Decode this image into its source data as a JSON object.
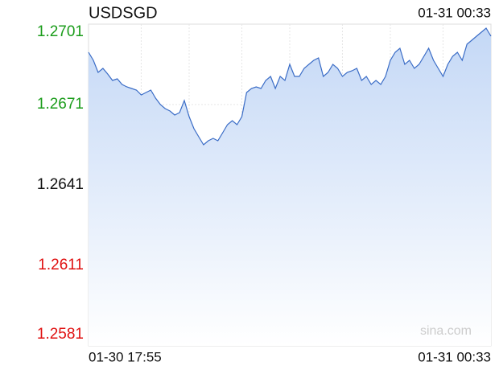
{
  "chart_data": {
    "type": "line",
    "title": "USDSGD",
    "time": "01-31 00:33",
    "watermark": "sina.com",
    "categories": [
      "01-30 17:55",
      null,
      null,
      null,
      null,
      null,
      null,
      null,
      null,
      null,
      null,
      null,
      null,
      null,
      null,
      null,
      null,
      null,
      null,
      null,
      null,
      null,
      null,
      null,
      null,
      null,
      null,
      null,
      null,
      null,
      null,
      null,
      null,
      null,
      null,
      null,
      null,
      null,
      null,
      null,
      null,
      null,
      null,
      null,
      null,
      null,
      null,
      null,
      null,
      null,
      null,
      null,
      null,
      null,
      null,
      null,
      null,
      null,
      null,
      null,
      null,
      null,
      null,
      null,
      null,
      null,
      null,
      null,
      null,
      null,
      null,
      null,
      null,
      null,
      null,
      null,
      null,
      null,
      null,
      null,
      null,
      null,
      null,
      null,
      "01-31 00:33"
    ],
    "values": [
      1.26905,
      1.26875,
      1.2683,
      1.26845,
      1.26824,
      1.268,
      1.26806,
      1.26785,
      1.26776,
      1.2677,
      1.26764,
      1.26746,
      1.26755,
      1.26764,
      1.26734,
      1.2671,
      1.26695,
      1.26686,
      1.26671,
      1.2668,
      1.26725,
      1.26665,
      1.2662,
      1.2659,
      1.2656,
      1.26575,
      1.26584,
      1.26575,
      1.26605,
      1.26635,
      1.2665,
      1.26635,
      1.26665,
      1.26755,
      1.2677,
      1.26776,
      1.2677,
      1.268,
      1.26815,
      1.2677,
      1.26815,
      1.268,
      1.2686,
      1.26815,
      1.26815,
      1.26845,
      1.2686,
      1.26875,
      1.26884,
      1.26815,
      1.2683,
      1.2686,
      1.26845,
      1.26815,
      1.2683,
      1.26836,
      1.26845,
      1.268,
      1.26815,
      1.26785,
      1.268,
      1.26785,
      1.26815,
      1.26875,
      1.26905,
      1.2692,
      1.2686,
      1.26875,
      1.26845,
      1.2686,
      1.2689,
      1.2692,
      1.26875,
      1.26845,
      1.26815,
      1.2686,
      1.2689,
      1.26905,
      1.26875,
      1.26935,
      1.2695,
      1.26965,
      1.2698,
      1.26995,
      1.26965
    ],
    "color": "#3a6cc6",
    "ylim": [
      1.2581,
      1.2701
    ],
    "yticks": [
      1.2701,
      1.2671,
      1.2641,
      1.2611,
      1.2581
    ],
    "baseline": 1.2641,
    "up_color": "#1a9c1a",
    "down_color": "#e01010",
    "grid": true
  }
}
